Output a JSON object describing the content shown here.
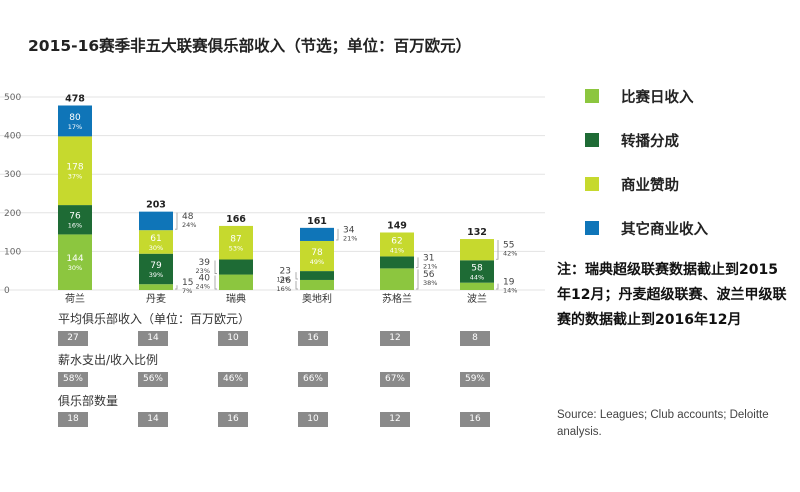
{
  "title": "2015-16赛季非五大联赛俱乐部收入（节选；单位：百万欧元）",
  "legend": [
    {
      "label": "比赛日收入",
      "color": "#8cc63f"
    },
    {
      "label": "转播分成",
      "color": "#1e6b35"
    },
    {
      "label": "商业赞助",
      "color": "#c6d92e"
    },
    {
      "label": "其它商业收入",
      "color": "#0f75b8"
    }
  ],
  "note": "注：瑞典超级联赛数据截止到2015年12月；丹麦超级联赛、波兰甲级联赛的数据截止到2016年12月",
  "source": "Source: Leagues; Club accounts; Deloitte analysis.",
  "chart_data": {
    "type": "bar",
    "stacked": true,
    "ylim": [
      0,
      500
    ],
    "yticks": [
      0,
      100,
      200,
      300,
      400,
      500
    ],
    "grid": true,
    "categories": [
      "荷兰",
      "丹麦",
      "瑞典",
      "奥地利",
      "苏格兰",
      "波兰"
    ],
    "totals": [
      "478",
      "203",
      "166",
      "161",
      "149",
      "132"
    ],
    "series": [
      {
        "name": "比赛日收入",
        "color": "#8cc63f",
        "values": [
          144,
          15,
          40,
          26,
          56,
          19
        ],
        "labels": [
          "144",
          "15",
          "40",
          "26",
          "56",
          "19"
        ],
        "pcts": [
          "30%",
          "7%",
          "24%",
          "16%",
          "38%",
          "14%"
        ]
      },
      {
        "name": "转播分成",
        "color": "#1e6b35",
        "values": [
          76,
          79,
          39,
          23,
          31,
          58
        ],
        "labels": [
          "76",
          "79",
          "39",
          "23",
          "31",
          "58"
        ],
        "pcts": [
          "16%",
          "39%",
          "23%",
          "14%",
          "21%",
          "44%"
        ]
      },
      {
        "name": "商业赞助",
        "color": "#c6d92e",
        "values": [
          178,
          61,
          87,
          78,
          62,
          55
        ],
        "labels": [
          "178",
          "61",
          "87",
          "78",
          "62",
          "55"
        ],
        "pcts": [
          "37%",
          "30%",
          "53%",
          "49%",
          "41%",
          "42%"
        ]
      },
      {
        "name": "其它商业收入",
        "color": "#0f75b8",
        "values": [
          80,
          48,
          0,
          34,
          0,
          0
        ],
        "labels": [
          "80",
          "48",
          "",
          "34",
          "",
          ""
        ],
        "pcts": [
          "17%",
          "24%",
          "",
          "21%",
          "",
          ""
        ]
      }
    ]
  },
  "table": {
    "rows": [
      {
        "label": "平均俱乐部收入（单位：百万欧元）",
        "values": [
          "27",
          "14",
          "10",
          "16",
          "12",
          "8"
        ]
      },
      {
        "label": "薪水支出/收入比例",
        "values": [
          "58%",
          "56%",
          "46%",
          "66%",
          "67%",
          "59%"
        ]
      },
      {
        "label": "俱乐部数量",
        "values": [
          "18",
          "14",
          "16",
          "10",
          "12",
          "16"
        ]
      }
    ]
  }
}
